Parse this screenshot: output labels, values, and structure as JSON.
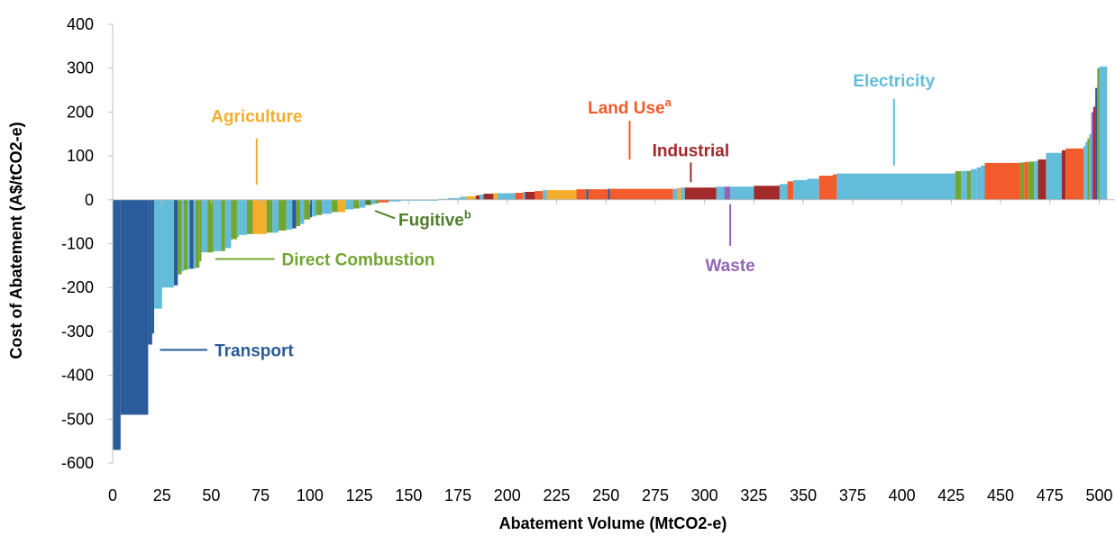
{
  "chart_data": {
    "type": "bar",
    "subtype": "marginal-abatement-cost-curve",
    "xlabel": "Abatement Volume (MtCO2-e)",
    "ylabel": "Cost of Abatement (A$/tCO2-e)",
    "xlim": [
      0,
      508
    ],
    "ylim": [
      -600,
      400
    ],
    "x_ticks": [
      "0",
      "25",
      "50",
      "75",
      "100",
      "125",
      "150",
      "175",
      "200",
      "225",
      "250",
      "275",
      "300",
      "325",
      "350",
      "375",
      "400",
      "425",
      "450",
      "475",
      "500"
    ],
    "y_ticks": [
      "400",
      "300",
      "200",
      "100",
      "0",
      "-100",
      "-200",
      "-300",
      "-400",
      "-500",
      "-600"
    ],
    "grid": false,
    "legend": "inline labels",
    "colors": {
      "Transport": "#2a5b9a",
      "Direct Combustion": "#73a532",
      "Agriculture": "#f2ae2c",
      "Fugitive": "#4f7e2c",
      "Land Use": "#f25c2c",
      "Industrial": "#a32a2a",
      "Waste": "#9364b6",
      "Electricity": "#63bcda"
    },
    "category_labels": [
      {
        "name": "Agriculture",
        "sup": "",
        "x": 73,
        "y": 200
      },
      {
        "name": "Land Use",
        "sup": "a",
        "x": 262,
        "y": 200
      },
      {
        "name": "Industrial",
        "sup": "",
        "x": 293,
        "y": 117
      },
      {
        "name": "Electricity",
        "sup": "",
        "x": 396,
        "y": 243
      },
      {
        "name": "Fugitive",
        "sup": "b",
        "x": 143,
        "y": -62
      },
      {
        "name": "Direct Combustion",
        "sup": "",
        "x": 86,
        "y": -135
      },
      {
        "name": "Waste",
        "sup": "",
        "x": 313,
        "y": -178
      },
      {
        "name": "Transport",
        "sup": "",
        "x": 52,
        "y": -348
      }
    ],
    "bars": [
      {
        "x0": 0,
        "x1": 4,
        "y": -570,
        "cat": "Transport"
      },
      {
        "x0": 4,
        "x1": 18,
        "y": -490,
        "cat": "Transport"
      },
      {
        "x0": 18,
        "x1": 20,
        "y": -330,
        "cat": "Transport"
      },
      {
        "x0": 20,
        "x1": 21,
        "y": -305,
        "cat": "Transport"
      },
      {
        "x0": 21,
        "x1": 25,
        "y": -248,
        "cat": "Electricity"
      },
      {
        "x0": 25,
        "x1": 31,
        "y": -200,
        "cat": "Electricity"
      },
      {
        "x0": 31,
        "x1": 33,
        "y": -195,
        "cat": "Transport"
      },
      {
        "x0": 33,
        "x1": 35,
        "y": -170,
        "cat": "Direct Combustion"
      },
      {
        "x0": 35,
        "x1": 36,
        "y": -163,
        "cat": "Electricity"
      },
      {
        "x0": 36,
        "x1": 38,
        "y": -160,
        "cat": "Direct Combustion"
      },
      {
        "x0": 38,
        "x1": 39,
        "y": -158,
        "cat": "Electricity"
      },
      {
        "x0": 39,
        "x1": 41,
        "y": -157,
        "cat": "Transport"
      },
      {
        "x0": 41,
        "x1": 42,
        "y": -157,
        "cat": "Electricity"
      },
      {
        "x0": 42,
        "x1": 44,
        "y": -155,
        "cat": "Direct Combustion"
      },
      {
        "x0": 44,
        "x1": 45,
        "y": -140,
        "cat": "Direct Combustion"
      },
      {
        "x0": 45,
        "x1": 48,
        "y": -120,
        "cat": "Electricity"
      },
      {
        "x0": 48,
        "x1": 51,
        "y": -120,
        "cat": "Direct Combustion"
      },
      {
        "x0": 51,
        "x1": 55,
        "y": -117,
        "cat": "Electricity"
      },
      {
        "x0": 55,
        "x1": 57,
        "y": -117,
        "cat": "Direct Combustion"
      },
      {
        "x0": 57,
        "x1": 60,
        "y": -110,
        "cat": "Electricity"
      },
      {
        "x0": 60,
        "x1": 63,
        "y": -90,
        "cat": "Direct Combustion"
      },
      {
        "x0": 63,
        "x1": 64,
        "y": -85,
        "cat": "Electricity"
      },
      {
        "x0": 64,
        "x1": 68,
        "y": -80,
        "cat": "Electricity"
      },
      {
        "x0": 68,
        "x1": 71,
        "y": -78,
        "cat": "Direct Combustion"
      },
      {
        "x0": 71,
        "x1": 78,
        "y": -78,
        "cat": "Agriculture"
      },
      {
        "x0": 78,
        "x1": 81,
        "y": -75,
        "cat": "Direct Combustion"
      },
      {
        "x0": 81,
        "x1": 84,
        "y": -75,
        "cat": "Electricity"
      },
      {
        "x0": 84,
        "x1": 88,
        "y": -70,
        "cat": "Direct Combustion"
      },
      {
        "x0": 88,
        "x1": 91,
        "y": -68,
        "cat": "Electricity"
      },
      {
        "x0": 91,
        "x1": 93,
        "y": -65,
        "cat": "Transport"
      },
      {
        "x0": 93,
        "x1": 95,
        "y": -60,
        "cat": "Direct Combustion"
      },
      {
        "x0": 95,
        "x1": 97,
        "y": -55,
        "cat": "Electricity"
      },
      {
        "x0": 97,
        "x1": 100,
        "y": -45,
        "cat": "Direct Combustion"
      },
      {
        "x0": 100,
        "x1": 101,
        "y": -40,
        "cat": "Transport"
      },
      {
        "x0": 101,
        "x1": 103,
        "y": -38,
        "cat": "Electricity"
      },
      {
        "x0": 103,
        "x1": 106,
        "y": -35,
        "cat": "Direct Combustion"
      },
      {
        "x0": 106,
        "x1": 111,
        "y": -32,
        "cat": "Electricity"
      },
      {
        "x0": 111,
        "x1": 114,
        "y": -28,
        "cat": "Direct Combustion"
      },
      {
        "x0": 114,
        "x1": 118,
        "y": -28,
        "cat": "Agriculture"
      },
      {
        "x0": 118,
        "x1": 122,
        "y": -22,
        "cat": "Electricity"
      },
      {
        "x0": 122,
        "x1": 125,
        "y": -20,
        "cat": "Direct Combustion"
      },
      {
        "x0": 125,
        "x1": 128,
        "y": -18,
        "cat": "Electricity"
      },
      {
        "x0": 128,
        "x1": 131,
        "y": -12,
        "cat": "Fugitive"
      },
      {
        "x0": 131,
        "x1": 133,
        "y": -10,
        "cat": "Electricity"
      },
      {
        "x0": 133,
        "x1": 135,
        "y": -8,
        "cat": "Direct Combustion"
      },
      {
        "x0": 135,
        "x1": 140,
        "y": -6,
        "cat": "Land Use"
      },
      {
        "x0": 140,
        "x1": 146,
        "y": -4,
        "cat": "Electricity"
      },
      {
        "x0": 146,
        "x1": 155,
        "y": -2,
        "cat": "Electricity"
      },
      {
        "x0": 155,
        "x1": 165,
        "y": -1,
        "cat": "Electricity"
      },
      {
        "x0": 165,
        "x1": 170,
        "y": 2,
        "cat": "Electricity"
      },
      {
        "x0": 170,
        "x1": 176,
        "y": 4,
        "cat": "Electricity"
      },
      {
        "x0": 176,
        "x1": 179,
        "y": 7,
        "cat": "Electricity"
      },
      {
        "x0": 179,
        "x1": 184,
        "y": 8,
        "cat": "Agriculture"
      },
      {
        "x0": 184,
        "x1": 186,
        "y": 10,
        "cat": "Industrial"
      },
      {
        "x0": 186,
        "x1": 188,
        "y": 12,
        "cat": "Electricity"
      },
      {
        "x0": 188,
        "x1": 193,
        "y": 14,
        "cat": "Industrial"
      },
      {
        "x0": 193,
        "x1": 195,
        "y": 15,
        "cat": "Agriculture"
      },
      {
        "x0": 195,
        "x1": 198,
        "y": 15,
        "cat": "Electricity"
      },
      {
        "x0": 198,
        "x1": 204,
        "y": 15,
        "cat": "Electricity"
      },
      {
        "x0": 204,
        "x1": 208,
        "y": 16,
        "cat": "Land Use"
      },
      {
        "x0": 208,
        "x1": 209,
        "y": 18,
        "cat": "Electricity"
      },
      {
        "x0": 209,
        "x1": 214,
        "y": 18,
        "cat": "Industrial"
      },
      {
        "x0": 214,
        "x1": 218,
        "y": 20,
        "cat": "Land Use"
      },
      {
        "x0": 218,
        "x1": 220,
        "y": 22,
        "cat": "Electricity"
      },
      {
        "x0": 220,
        "x1": 235,
        "y": 22,
        "cat": "Agriculture"
      },
      {
        "x0": 235,
        "x1": 240,
        "y": 24,
        "cat": "Land Use"
      },
      {
        "x0": 240,
        "x1": 241,
        "y": 24,
        "cat": "Transport"
      },
      {
        "x0": 241,
        "x1": 251,
        "y": 24,
        "cat": "Land Use"
      },
      {
        "x0": 251,
        "x1": 252,
        "y": 25,
        "cat": "Transport"
      },
      {
        "x0": 252,
        "x1": 284,
        "y": 25,
        "cat": "Land Use"
      },
      {
        "x0": 284,
        "x1": 286,
        "y": 25,
        "cat": "Electricity"
      },
      {
        "x0": 286,
        "x1": 288,
        "y": 27,
        "cat": "Agriculture"
      },
      {
        "x0": 288,
        "x1": 290,
        "y": 28,
        "cat": "Electricity"
      },
      {
        "x0": 290,
        "x1": 306,
        "y": 28,
        "cat": "Industrial"
      },
      {
        "x0": 306,
        "x1": 310,
        "y": 30,
        "cat": "Electricity"
      },
      {
        "x0": 310,
        "x1": 313,
        "y": 30,
        "cat": "Waste"
      },
      {
        "x0": 313,
        "x1": 325,
        "y": 30,
        "cat": "Electricity"
      },
      {
        "x0": 325,
        "x1": 338,
        "y": 32,
        "cat": "Industrial"
      },
      {
        "x0": 338,
        "x1": 342,
        "y": 36,
        "cat": "Electricity"
      },
      {
        "x0": 342,
        "x1": 345,
        "y": 42,
        "cat": "Land Use"
      },
      {
        "x0": 345,
        "x1": 352,
        "y": 45,
        "cat": "Electricity"
      },
      {
        "x0": 352,
        "x1": 358,
        "y": 48,
        "cat": "Electricity"
      },
      {
        "x0": 358,
        "x1": 365,
        "y": 55,
        "cat": "Land Use"
      },
      {
        "x0": 365,
        "x1": 367,
        "y": 58,
        "cat": "Land Use"
      },
      {
        "x0": 367,
        "x1": 427,
        "y": 60,
        "cat": "Electricity"
      },
      {
        "x0": 427,
        "x1": 430,
        "y": 65,
        "cat": "Direct Combustion"
      },
      {
        "x0": 430,
        "x1": 433,
        "y": 66,
        "cat": "Electricity"
      },
      {
        "x0": 433,
        "x1": 435,
        "y": 66,
        "cat": "Direct Combustion"
      },
      {
        "x0": 435,
        "x1": 438,
        "y": 70,
        "cat": "Electricity"
      },
      {
        "x0": 438,
        "x1": 440,
        "y": 74,
        "cat": "Electricity"
      },
      {
        "x0": 440,
        "x1": 442,
        "y": 78,
        "cat": "Electricity"
      },
      {
        "x0": 442,
        "x1": 460,
        "y": 84,
        "cat": "Land Use"
      },
      {
        "x0": 460,
        "x1": 462,
        "y": 85,
        "cat": "Direct Combustion"
      },
      {
        "x0": 462,
        "x1": 464,
        "y": 86,
        "cat": "Land Use"
      },
      {
        "x0": 464,
        "x1": 467,
        "y": 87,
        "cat": "Direct Combustion"
      },
      {
        "x0": 467,
        "x1": 469,
        "y": 88,
        "cat": "Electricity"
      },
      {
        "x0": 469,
        "x1": 473,
        "y": 92,
        "cat": "Industrial"
      },
      {
        "x0": 473,
        "x1": 481,
        "y": 107,
        "cat": "Electricity"
      },
      {
        "x0": 481,
        "x1": 483,
        "y": 113,
        "cat": "Industrial"
      },
      {
        "x0": 483,
        "x1": 492,
        "y": 117,
        "cat": "Land Use"
      },
      {
        "x0": 492,
        "x1": 493,
        "y": 123,
        "cat": "Electricity"
      },
      {
        "x0": 493,
        "x1": 494,
        "y": 132,
        "cat": "Electricity"
      },
      {
        "x0": 494,
        "x1": 495,
        "y": 140,
        "cat": "Direct Combustion"
      },
      {
        "x0": 495,
        "x1": 496,
        "y": 150,
        "cat": "Electricity"
      },
      {
        "x0": 496,
        "x1": 497,
        "y": 200,
        "cat": "Waste"
      },
      {
        "x0": 497,
        "x1": 498,
        "y": 212,
        "cat": "Industrial"
      },
      {
        "x0": 498,
        "x1": 499,
        "y": 255,
        "cat": "Transport"
      },
      {
        "x0": 499,
        "x1": 500,
        "y": 300,
        "cat": "Direct Combustion"
      },
      {
        "x0": 500,
        "x1": 504,
        "y": 304,
        "cat": "Electricity"
      }
    ]
  }
}
